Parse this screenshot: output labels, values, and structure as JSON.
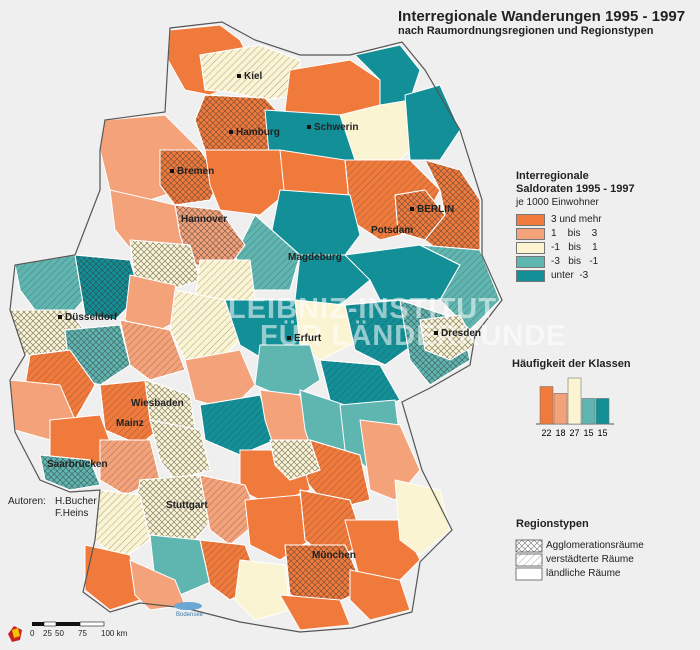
{
  "title": "Interregionale Wanderungen 1995 - 1997",
  "subtitle": "nach Raumordnungsregionen und Regionstypen",
  "legend": {
    "title_line1": "Interregionale",
    "title_line2": "Saldoraten 1995 - 1997",
    "unit": "je 1000 Einwohner",
    "classes": [
      {
        "label": "3 und mehr",
        "color": "#f07a3c"
      },
      {
        "label": "1    bis    3",
        "color": "#f4a27a"
      },
      {
        "label": "-1   bis    1",
        "color": "#fbf4d2"
      },
      {
        "label": "-3   bis   -1",
        "color": "#5fb5b0"
      },
      {
        "label": "unter  -3",
        "color": "#138f97"
      }
    ]
  },
  "histogram": {
    "title": "Häufigkeit der Klassen",
    "counts": [
      22,
      18,
      27,
      15,
      15
    ],
    "count_labels": [
      "22",
      "18",
      "27",
      "15",
      "15"
    ]
  },
  "region_types": {
    "title": "Regionstypen",
    "items": [
      {
        "label": "Agglomerationsräume",
        "pattern": "crosshatch"
      },
      {
        "label": "verstädterte Räume",
        "pattern": "hatch"
      },
      {
        "label": "ländliche Räume",
        "pattern": "plain"
      }
    ]
  },
  "authors": {
    "label": "Autoren:",
    "name1": "H.Bucher",
    "name2": "F.Heins"
  },
  "cities": {
    "kiel": "Kiel",
    "hamburg": "Hamburg",
    "schwerin": "Schwerin",
    "bremen": "Bremen",
    "berlin": "BERLIN",
    "potsdam": "Potsdam",
    "hannover": "Hannover",
    "magdeburg": "Magdeburg",
    "duesseldorf": "Düsseldorf",
    "dresden": "Dresden",
    "erfurt": "Erfurt",
    "wiesbaden": "Wiesbaden",
    "mainz": "Mainz",
    "saarbruecken": "Saarbrücken",
    "stuttgart": "Stuttgart",
    "muenchen": "München"
  },
  "lake": "Bodensee",
  "watermark": {
    "line1": "LEIBNIZ-INSTITUT",
    "line2": "FÜR LÄNDERKUNDE"
  },
  "scale": {
    "ticks": [
      "0",
      "25",
      "50",
      "75",
      "100 km"
    ]
  }
}
